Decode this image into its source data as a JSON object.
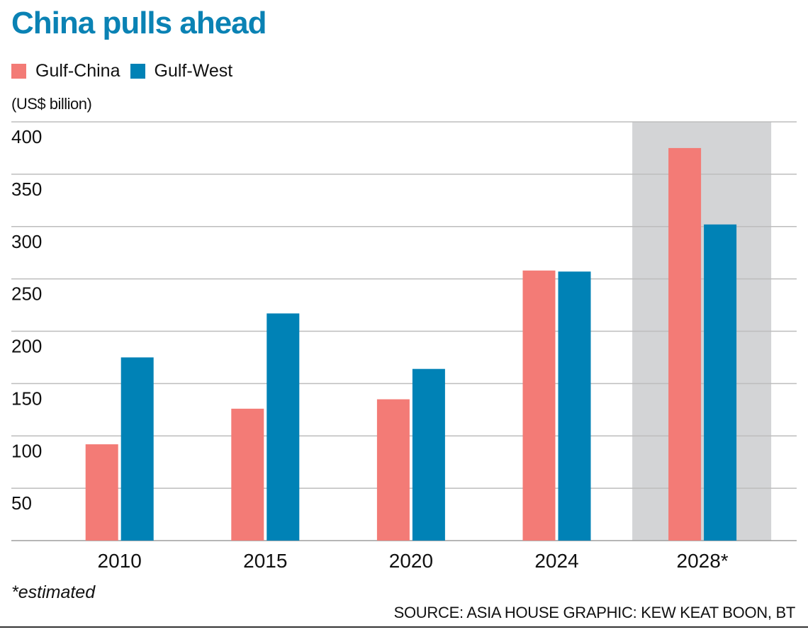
{
  "header": {
    "title": "China pulls ahead"
  },
  "legend": [
    {
      "label": "Gulf-China",
      "color": "#f37b76"
    },
    {
      "label": "Gulf-West",
      "color": "#0082b6"
    }
  ],
  "unit_label": "(US$ billion)",
  "footnote": "*estimated",
  "credits": "SOURCE: ASIA HOUSE   GRAPHIC: KEW KEAT BOON, BT",
  "colors": {
    "title": "#0a82b4",
    "gulf_china": "#f37b76",
    "gulf_west": "#0082b6",
    "estimate_band": "#d3d4d6",
    "gridline": "#bdbdbd"
  },
  "chart_data": {
    "type": "bar",
    "title": "China pulls ahead",
    "xlabel": "",
    "ylabel": "(US$ billion)",
    "categories": [
      "2010",
      "2015",
      "2020",
      "2024",
      "2028*"
    ],
    "series": [
      {
        "name": "Gulf-China",
        "values": [
          92,
          126,
          135,
          258,
          375
        ]
      },
      {
        "name": "Gulf-West",
        "values": [
          175,
          217,
          164,
          257,
          302
        ]
      }
    ],
    "ylim": [
      0,
      400
    ],
    "yticks": [
      50,
      100,
      150,
      200,
      250,
      300,
      350,
      400
    ],
    "grid": true,
    "legend_position": "top-left",
    "highlighted_category": "2028*",
    "annotations": [
      "*estimated"
    ]
  }
}
